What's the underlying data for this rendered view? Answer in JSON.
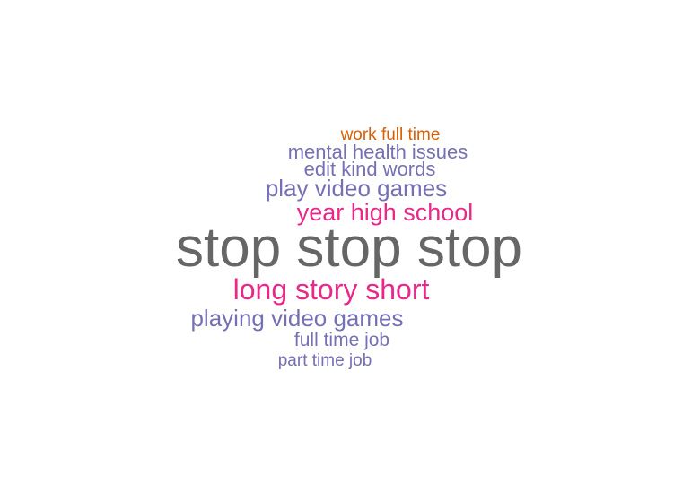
{
  "word_cloud": {
    "words": [
      {
        "text": "work full time",
        "color": "#d95f02"
      },
      {
        "text": "mental health issues",
        "color": "#7570b3"
      },
      {
        "text": "edit kind words",
        "color": "#7570b3"
      },
      {
        "text": "play video games",
        "color": "#7570b3"
      },
      {
        "text": "year high school",
        "color": "#e7298a"
      },
      {
        "text": "stop stop stop",
        "color": "#666666"
      },
      {
        "text": "long story short",
        "color": "#e7298a"
      },
      {
        "text": "playing video games",
        "color": "#7570b3"
      },
      {
        "text": "full time job",
        "color": "#7570b3"
      },
      {
        "text": "part time job",
        "color": "#7570b3"
      }
    ]
  }
}
